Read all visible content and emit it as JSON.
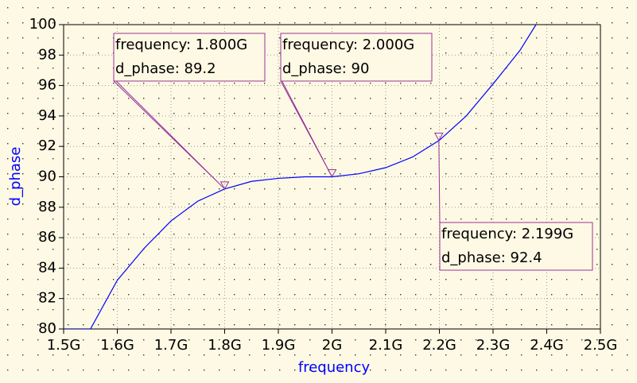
{
  "chart_data": {
    "type": "line",
    "xlabel": "frequency",
    "ylabel": "d_phase",
    "x": [
      1.5,
      1.55,
      1.6,
      1.65,
      1.7,
      1.75,
      1.8,
      1.85,
      1.9,
      1.95,
      2.0,
      2.05,
      2.1,
      2.15,
      2.2,
      2.25,
      2.3,
      2.35,
      2.38
    ],
    "series": [
      {
        "name": "d_phase",
        "color": "#0000ff",
        "values": [
          80,
          80,
          83.2,
          85.3,
          87.1,
          88.4,
          89.2,
          89.7,
          89.9,
          90,
          90,
          90.2,
          90.6,
          91.3,
          92.4,
          94.0,
          96.1,
          98.3,
          100
        ]
      }
    ],
    "xlim": [
      1.5,
      2.5
    ],
    "ylim": [
      80,
      100
    ],
    "xticks": [
      {
        "value": 1.5,
        "label": "1.5G"
      },
      {
        "value": 1.6,
        "label": "1.6G"
      },
      {
        "value": 1.7,
        "label": "1.7G"
      },
      {
        "value": 1.8,
        "label": "1.8G"
      },
      {
        "value": 1.9,
        "label": "1.9G"
      },
      {
        "value": 2.0,
        "label": "2G"
      },
      {
        "value": 2.1,
        "label": "2.1G"
      },
      {
        "value": 2.2,
        "label": "2.2G"
      },
      {
        "value": 2.3,
        "label": "2.3G"
      },
      {
        "value": 2.4,
        "label": "2.4G"
      },
      {
        "value": 2.5,
        "label": "2.5G"
      }
    ],
    "yticks": [
      80,
      82,
      84,
      86,
      88,
      90,
      92,
      94,
      96,
      98,
      100
    ],
    "grid": true,
    "markers": [
      {
        "x": 1.8,
        "y": 89.2,
        "lines": [
          "frequency: 1.800G",
          "d_phase: 89.2"
        ]
      },
      {
        "x": 2.0,
        "y": 90,
        "lines": [
          "frequency: 2.000G",
          "d_phase: 90"
        ]
      },
      {
        "x": 2.199,
        "y": 92.4,
        "lines": [
          "frequency: 2.199G",
          "d_phase: 92.4"
        ]
      }
    ]
  }
}
